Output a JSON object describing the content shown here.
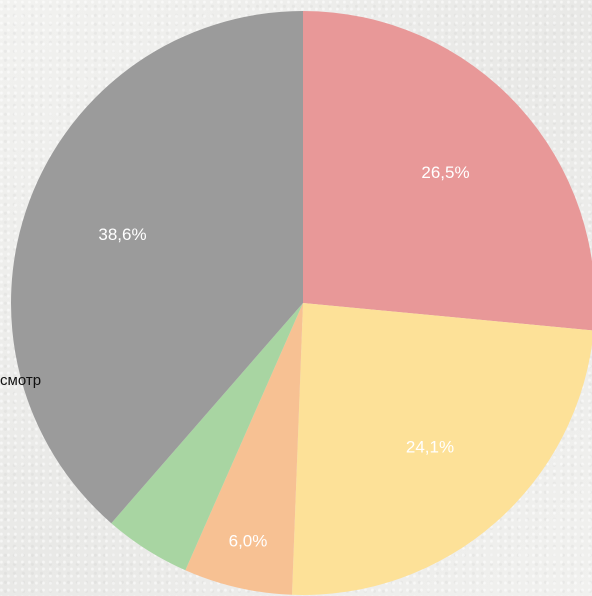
{
  "chart_data": {
    "type": "pie",
    "title": "",
    "slices": [
      {
        "value": 26.5,
        "label": "26,5%",
        "color": "#e89898"
      },
      {
        "value": 24.1,
        "label": "24,1%",
        "color": "#fde198"
      },
      {
        "value": 6.0,
        "label": "6,0%",
        "color": "#f7c193"
      },
      {
        "value": 4.8,
        "label": "",
        "color": "#a8d5a2"
      },
      {
        "value": 38.6,
        "label": "38,6%",
        "color": "#9b9b9b"
      }
    ],
    "start_angle": "top",
    "direction": "clockwise",
    "outside_label": "смотр"
  }
}
